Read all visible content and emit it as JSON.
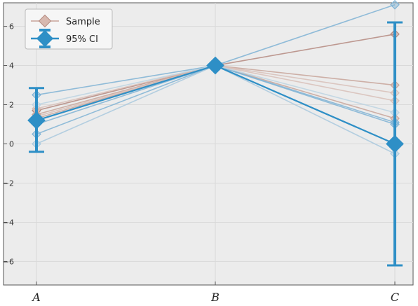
{
  "chart_data": {
    "type": "line",
    "categories": [
      "A",
      "B",
      "C"
    ],
    "ylim": [
      -7.2,
      7.2
    ],
    "yticks": [
      -6,
      -4,
      -2,
      0,
      2,
      4,
      6
    ],
    "ytick_labels": [
      "−6",
      "−4",
      "−2",
      "0",
      "2",
      "4",
      "6"
    ],
    "grid": true,
    "legend_position": "top-left",
    "legend": [
      {
        "label": "Sample",
        "color": "#c8a49a"
      },
      {
        "label": "95% CI",
        "color": "#2e8fc6"
      }
    ],
    "samples": [
      {
        "values": [
          1.7,
          4.0,
          5.6
        ],
        "color": "#b58a80"
      },
      {
        "values": [
          1.5,
          4.0,
          3.0
        ],
        "color": "#c8a49a"
      },
      {
        "values": [
          1.3,
          4.0,
          1.3
        ],
        "color": "#c8a49a"
      },
      {
        "values": [
          1.8,
          4.0,
          2.2
        ],
        "color": "#d8c0b8"
      },
      {
        "values": [
          1.4,
          4.0,
          2.6
        ],
        "color": "#d8c0b8"
      },
      {
        "values": [
          2.5,
          4.0,
          7.1
        ],
        "color": "#7fb3d5"
      },
      {
        "values": [
          1.0,
          4.0,
          1.1
        ],
        "color": "#7fb3d5"
      },
      {
        "values": [
          0.5,
          4.0,
          1.0
        ],
        "color": "#7fb3d5"
      },
      {
        "values": [
          0.0,
          4.0,
          -0.5
        ],
        "color": "#a9c9de"
      },
      {
        "values": [
          2.0,
          4.0,
          1.6
        ],
        "color": "#bcd3e2"
      }
    ],
    "mean": {
      "values": [
        1.2,
        4.0,
        0.0
      ],
      "color": "#2e8fc6"
    },
    "ci": [
      {
        "category": "A",
        "low": -0.4,
        "high": 2.85
      },
      {
        "category": "C",
        "low": -6.2,
        "high": 6.2
      }
    ]
  }
}
